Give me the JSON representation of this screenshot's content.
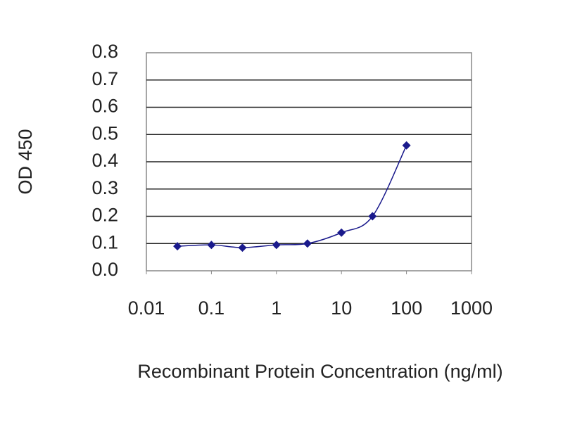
{
  "chart_data": {
    "type": "line",
    "xlabel": "Recombinant Protein Concentration (ng/ml)",
    "ylabel": "OD 450",
    "x": [
      0.03,
      0.1,
      0.3,
      1,
      3,
      10,
      30,
      100
    ],
    "values": [
      0.09,
      0.095,
      0.085,
      0.095,
      0.1,
      0.14,
      0.2,
      0.46
    ],
    "color": "#1a1a8c",
    "xscale": "log",
    "xlim": [
      0.01,
      1000
    ],
    "xticks": [
      0.01,
      0.1,
      1,
      10,
      100,
      1000
    ],
    "ylim": [
      0,
      0.8
    ],
    "yticks": [
      {
        "value": 0,
        "label": "0.0"
      },
      0.1,
      0.2,
      0.3,
      0.4,
      0.5,
      0.6,
      0.7,
      0.8
    ],
    "grid": true
  }
}
